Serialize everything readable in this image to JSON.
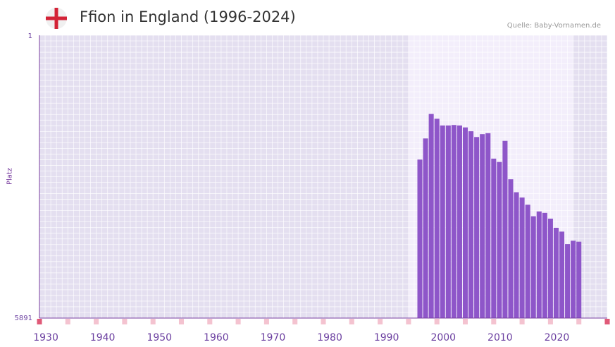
{
  "header": {
    "title": "Ffion in England (1996-2024)",
    "source": "Quelle: Baby-Vornamen.de",
    "flag_icon": "england-flag-icon"
  },
  "chart_data": {
    "type": "bar",
    "title": "Ffion in England (1996-2024)",
    "xlabel": "",
    "ylabel": "Platz",
    "y_top_label": "1",
    "y_bottom_label": "5891",
    "ylim": [
      5891,
      1
    ],
    "xlim": [
      1929,
      2029
    ],
    "x_tick_labels": [
      "1930",
      "1940",
      "1950",
      "1960",
      "1970",
      "1980",
      "1990",
      "2000",
      "2010",
      "2020"
    ],
    "highlight_range": [
      1994,
      2023
    ],
    "colors": {
      "bar": "#8e56c9",
      "axis": "#7a3fa0",
      "marker_dark": "#e05a78",
      "marker_light": "#f4c3d0"
    },
    "years": [
      1996,
      1997,
      1998,
      1999,
      2000,
      2001,
      2002,
      2003,
      2004,
      2005,
      2006,
      2007,
      2008,
      2009,
      2010,
      2011,
      2012,
      2013,
      2014,
      2015,
      2016,
      2017,
      2018,
      2019,
      2020,
      2021,
      2022,
      2023,
      2024
    ],
    "values": [
      2590,
      2150,
      1640,
      1740,
      1880,
      1880,
      1870,
      1880,
      1920,
      2000,
      2120,
      2060,
      2040,
      2570,
      2640,
      2200,
      3000,
      3270,
      3380,
      3530,
      3770,
      3670,
      3700,
      3820,
      4010,
      4090,
      4350,
      4280,
      4300
    ]
  }
}
